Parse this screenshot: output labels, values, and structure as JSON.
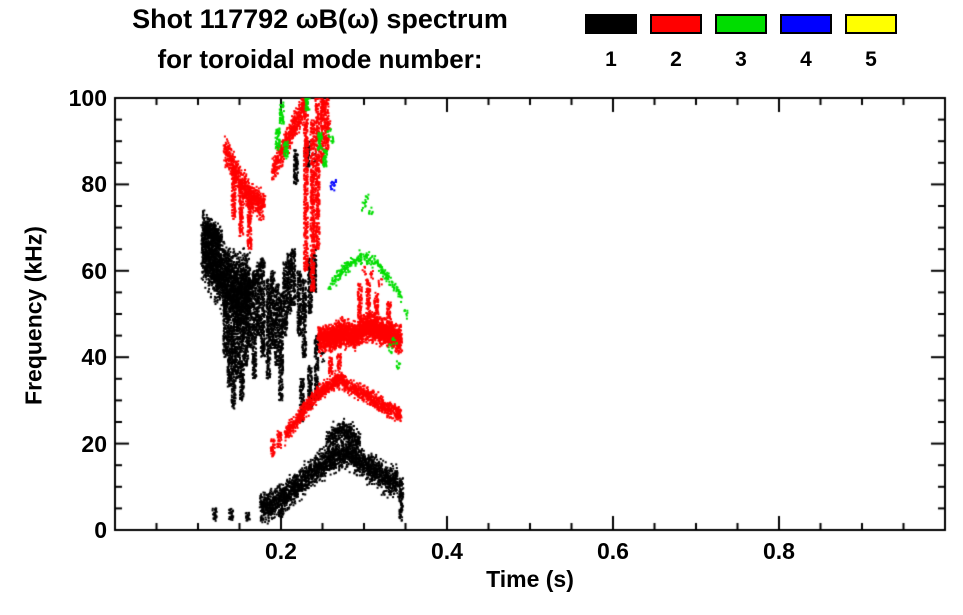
{
  "header": {
    "title": "Shot 117792 ωB(ω) spectrum",
    "subtitle": "for toroidal mode number:"
  },
  "legend": {
    "items": [
      {
        "label": "1",
        "color": "#000000"
      },
      {
        "label": "2",
        "color": "#ff0000"
      },
      {
        "label": "3",
        "color": "#00dd00"
      },
      {
        "label": "4",
        "color": "#0000ff"
      },
      {
        "label": "5",
        "color": "#ffff00"
      }
    ]
  },
  "chart_data": {
    "type": "scatter",
    "title": "Shot 117792 ωB(ω) spectrum",
    "subtitle": "for toroidal mode number:",
    "xlabel": "Time (s)",
    "ylabel": "Frequency (kHz)",
    "xlim": [
      0.0,
      1.0
    ],
    "ylim": [
      0,
      100
    ],
    "xticks": [
      0.2,
      0.4,
      0.6,
      0.8
    ],
    "yticks": [
      0,
      20,
      40,
      60,
      80,
      100
    ],
    "x_major_step": 0.2,
    "y_major_step": 20,
    "x_minor_step": 0.05,
    "y_minor_step": 5,
    "grid": false,
    "legend_position": "top-right",
    "series": [
      {
        "name": "n=1",
        "color": "#000000",
        "bands": [
          {
            "path": [
              [
                0.105,
                66
              ],
              [
                0.115,
                63
              ],
              [
                0.125,
                60
              ],
              [
                0.135,
                58
              ],
              [
                0.145,
                55
              ],
              [
                0.155,
                56
              ],
              [
                0.162,
                55
              ]
            ],
            "spread": 9,
            "n": 2600
          },
          {
            "path": [
              [
                0.108,
                70
              ],
              [
                0.118,
                69
              ],
              [
                0.128,
                67
              ]
            ],
            "spread": 3,
            "n": 300
          },
          {
            "path": [
              [
                0.175,
                5
              ],
              [
                0.19,
                6
              ],
              [
                0.205,
                8
              ],
              [
                0.22,
                10
              ],
              [
                0.235,
                13
              ],
              [
                0.25,
                15
              ],
              [
                0.265,
                17
              ],
              [
                0.28,
                18
              ],
              [
                0.295,
                16
              ],
              [
                0.31,
                14
              ],
              [
                0.325,
                12
              ],
              [
                0.34,
                11
              ]
            ],
            "spread": 4,
            "n": 2400
          },
          {
            "path": [
              [
                0.255,
                20
              ],
              [
                0.265,
                22
              ],
              [
                0.275,
                23
              ],
              [
                0.285,
                22
              ],
              [
                0.295,
                20
              ]
            ],
            "spread": 3,
            "n": 350
          }
        ],
        "streaks": [
          [
            0.133,
            40,
            55
          ],
          [
            0.138,
            33,
            52
          ],
          [
            0.143,
            28,
            50
          ],
          [
            0.148,
            35,
            55
          ],
          [
            0.153,
            30,
            52
          ],
          [
            0.158,
            38,
            56
          ],
          [
            0.163,
            42,
            58
          ],
          [
            0.168,
            35,
            60
          ],
          [
            0.173,
            45,
            62
          ],
          [
            0.178,
            40,
            63
          ],
          [
            0.185,
            35,
            58
          ],
          [
            0.19,
            42,
            60
          ],
          [
            0.195,
            38,
            57
          ],
          [
            0.2,
            30,
            55
          ],
          [
            0.205,
            45,
            62
          ],
          [
            0.21,
            50,
            64
          ],
          [
            0.215,
            52,
            65
          ],
          [
            0.222,
            45,
            60
          ],
          [
            0.228,
            40,
            58
          ],
          [
            0.235,
            50,
            63
          ],
          [
            0.24,
            55,
            65
          ],
          [
            0.243,
            30,
            45
          ],
          [
            0.218,
            80,
            88
          ],
          [
            0.232,
            84,
            90
          ],
          [
            0.12,
            2,
            5
          ],
          [
            0.14,
            2,
            5
          ],
          [
            0.16,
            2,
            4
          ],
          [
            0.2,
            3,
            5
          ],
          [
            0.345,
            2,
            12
          ],
          [
            0.225,
            25,
            35
          ],
          [
            0.235,
            28,
            38
          ]
        ],
        "dots": [
          [
            0.23,
            87
          ],
          [
            0.24,
            86
          ],
          [
            0.25,
            40
          ]
        ]
      },
      {
        "name": "n=2",
        "color": "#ff0000",
        "bands": [
          {
            "path": [
              [
                0.132,
                88
              ],
              [
                0.14,
                85
              ],
              [
                0.15,
                81
              ],
              [
                0.16,
                78
              ],
              [
                0.17,
                76
              ],
              [
                0.18,
                75
              ]
            ],
            "spread": 4,
            "n": 700
          },
          {
            "path": [
              [
                0.19,
                83
              ],
              [
                0.2,
                87
              ],
              [
                0.21,
                91
              ],
              [
                0.22,
                95
              ],
              [
                0.23,
                99
              ]
            ],
            "spread": 3.5,
            "n": 550
          },
          {
            "path": [
              [
                0.245,
                44
              ],
              [
                0.26,
                44.5
              ],
              [
                0.275,
                45.5
              ],
              [
                0.29,
                45
              ],
              [
                0.3,
                46.5
              ],
              [
                0.31,
                47
              ],
              [
                0.32,
                46
              ],
              [
                0.33,
                45.5
              ],
              [
                0.345,
                44
              ]
            ],
            "spread": 3.5,
            "n": 2600
          },
          {
            "path": [
              [
                0.205,
                22
              ],
              [
                0.215,
                24.5
              ],
              [
                0.225,
                27
              ],
              [
                0.235,
                29.5
              ],
              [
                0.245,
                31.5
              ],
              [
                0.255,
                33
              ],
              [
                0.265,
                34.5
              ],
              [
                0.275,
                35
              ]
            ],
            "spread": 2.2,
            "n": 700
          },
          {
            "path": [
              [
                0.275,
                34
              ],
              [
                0.29,
                32.5
              ],
              [
                0.305,
                31
              ],
              [
                0.32,
                29
              ],
              [
                0.335,
                27.5
              ],
              [
                0.345,
                26.5
              ]
            ],
            "spread": 2.2,
            "n": 600
          }
        ],
        "streaks": [
          [
            0.143,
            72,
            84
          ],
          [
            0.152,
            68,
            80
          ],
          [
            0.162,
            65,
            78
          ],
          [
            0.23,
            60,
            98
          ],
          [
            0.238,
            55,
            95
          ],
          [
            0.244,
            65,
            100
          ],
          [
            0.25,
            85,
            100
          ],
          [
            0.255,
            88,
            100
          ],
          [
            0.295,
            48,
            57
          ],
          [
            0.305,
            49,
            58
          ],
          [
            0.315,
            47,
            55
          ],
          [
            0.33,
            46,
            53
          ],
          [
            0.19,
            17,
            21
          ],
          [
            0.198,
            19,
            23
          ],
          [
            0.26,
            36,
            40
          ],
          [
            0.27,
            37,
            41
          ]
        ],
        "dots": [
          [
            0.25,
            96
          ],
          [
            0.252,
            92
          ],
          [
            0.258,
            94
          ],
          [
            0.3,
            60
          ],
          [
            0.31,
            59
          ],
          [
            0.32,
            57
          ]
        ]
      },
      {
        "name": "n=3",
        "color": "#00dd00",
        "bands": [
          {
            "path": [
              [
                0.258,
                56
              ],
              [
                0.27,
                59
              ],
              [
                0.285,
                62
              ],
              [
                0.3,
                63.5
              ],
              [
                0.315,
                62
              ],
              [
                0.33,
                58
              ],
              [
                0.345,
                54
              ]
            ],
            "spread": 1.6,
            "n": 280
          }
        ],
        "streaks": [
          [
            0.196,
            88,
            93
          ],
          [
            0.201,
            94,
            99
          ],
          [
            0.206,
            86,
            90
          ],
          [
            0.232,
            97,
            100
          ],
          [
            0.247,
            88,
            92
          ],
          [
            0.253,
            84,
            88
          ]
        ],
        "dots": [
          [
            0.3,
            75
          ],
          [
            0.304,
            77
          ],
          [
            0.308,
            74
          ],
          [
            0.332,
            42
          ],
          [
            0.337,
            44
          ],
          [
            0.342,
            38
          ],
          [
            0.258,
            92
          ],
          [
            0.262,
            90
          ],
          [
            0.35,
            50
          ]
        ]
      },
      {
        "name": "n=4",
        "color": "#0000ff",
        "bands": [],
        "streaks": [],
        "dots": [
          [
            0.262,
            79.5
          ],
          [
            0.264,
            80.5
          ]
        ]
      },
      {
        "name": "n=5",
        "color": "#ffff00",
        "bands": [],
        "streaks": [],
        "dots": []
      }
    ]
  }
}
